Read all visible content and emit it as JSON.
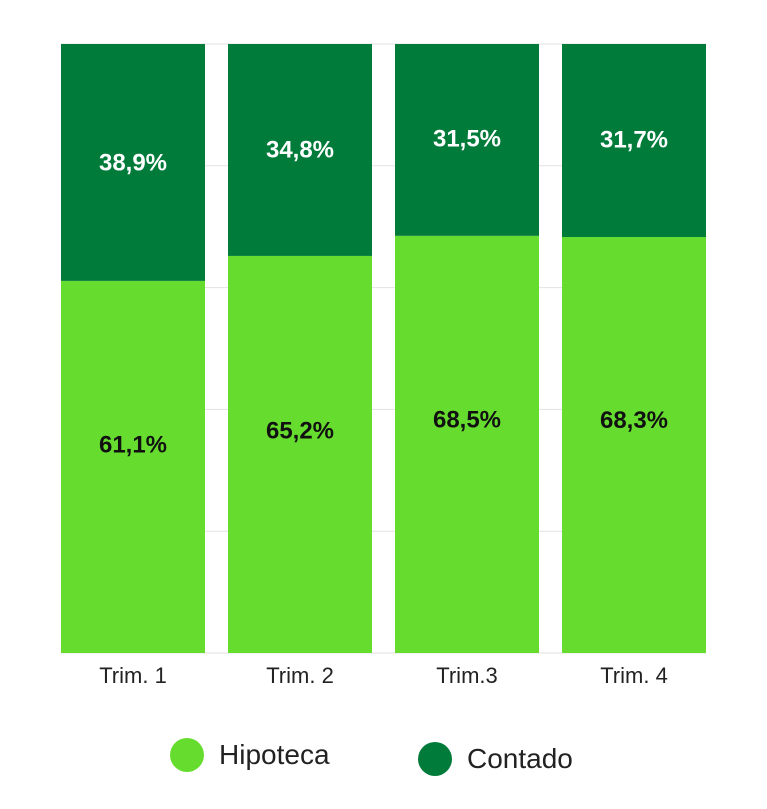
{
  "chart_data": {
    "type": "bar",
    "stacked": true,
    "percent_stacked": true,
    "categories": [
      "Trim. 1",
      "Trim. 2",
      "Trim.3",
      "Trim. 4"
    ],
    "series": [
      {
        "name": "Hipoteca",
        "color": "#66dd2e",
        "label_color": "#111111",
        "values": [
          61.1,
          65.2,
          68.5,
          68.3
        ],
        "labels": [
          "61,1%",
          "65,2%",
          "68,5%",
          "68,3%"
        ]
      },
      {
        "name": "Contado",
        "color": "#017b3a",
        "label_color": "#ffffff",
        "values": [
          38.9,
          34.8,
          31.5,
          31.7
        ],
        "labels": [
          "38,9%",
          "34,8%",
          "31,5%",
          "31,7%"
        ]
      }
    ],
    "ylim": [
      0,
      100
    ],
    "grid": true,
    "legend_position": "bottom"
  }
}
